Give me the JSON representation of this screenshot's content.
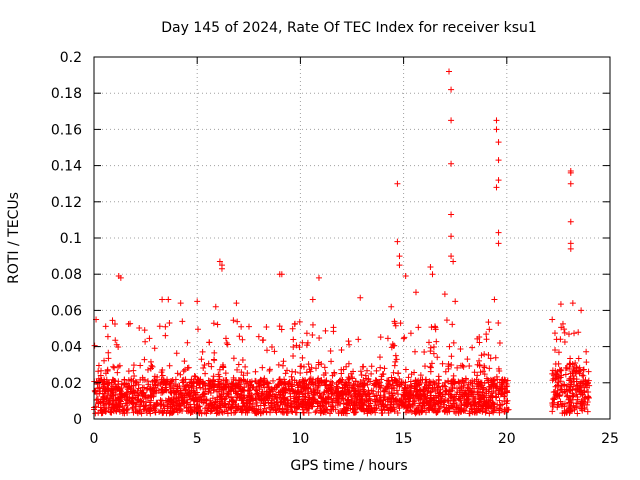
{
  "chart_data": {
    "type": "scatter",
    "title": "Day 145 of 2024, Rate Of TEC Index for receiver ksu1",
    "xlabel": "GPS time / hours",
    "ylabel": "ROTI / TECUs",
    "xlim": [
      0,
      25
    ],
    "ylim": [
      0,
      0.2
    ],
    "xticks": [
      0,
      5,
      10,
      15,
      20,
      25
    ],
    "xtick_labels": [
      "0",
      "5",
      "10",
      "15",
      "20",
      "25"
    ],
    "yticks": [
      0,
      0.02,
      0.04,
      0.06,
      0.08,
      0.1,
      0.12,
      0.14,
      0.16,
      0.18,
      0.2
    ],
    "ytick_labels": [
      "0",
      "0.02",
      "0.04",
      "0.06",
      "0.08",
      "0.1",
      "0.12",
      "0.14",
      "0.16",
      "0.18",
      "0.2"
    ],
    "grid": true,
    "marker": "+",
    "color": "#ff0000",
    "dense_coverage": [
      {
        "x_start": 0.0,
        "x_end": 20.1,
        "y_min": 0.003,
        "y_max": 0.03
      },
      {
        "x_start": 22.2,
        "x_end": 24.0,
        "y_min": 0.003,
        "y_max": 0.04
      }
    ],
    "data_gap_hours": [
      20.1,
      22.2
    ],
    "highlighted_points": [
      {
        "x": 0.1,
        "y": 0.055
      },
      {
        "x": 1.2,
        "y": 0.079
      },
      {
        "x": 1.3,
        "y": 0.078
      },
      {
        "x": 3.3,
        "y": 0.066
      },
      {
        "x": 3.6,
        "y": 0.066
      },
      {
        "x": 4.2,
        "y": 0.064
      },
      {
        "x": 5.0,
        "y": 0.065
      },
      {
        "x": 5.9,
        "y": 0.062
      },
      {
        "x": 6.1,
        "y": 0.087
      },
      {
        "x": 6.2,
        "y": 0.085
      },
      {
        "x": 6.2,
        "y": 0.083
      },
      {
        "x": 6.9,
        "y": 0.064
      },
      {
        "x": 9.0,
        "y": 0.08
      },
      {
        "x": 9.1,
        "y": 0.08
      },
      {
        "x": 10.6,
        "y": 0.066
      },
      {
        "x": 10.9,
        "y": 0.078
      },
      {
        "x": 12.9,
        "y": 0.067
      },
      {
        "x": 14.4,
        "y": 0.062
      },
      {
        "x": 14.7,
        "y": 0.13
      },
      {
        "x": 14.7,
        "y": 0.098
      },
      {
        "x": 14.8,
        "y": 0.09
      },
      {
        "x": 14.8,
        "y": 0.085
      },
      {
        "x": 15.1,
        "y": 0.079
      },
      {
        "x": 15.6,
        "y": 0.07
      },
      {
        "x": 16.3,
        "y": 0.084
      },
      {
        "x": 16.4,
        "y": 0.08
      },
      {
        "x": 17.0,
        "y": 0.069
      },
      {
        "x": 17.2,
        "y": 0.192
      },
      {
        "x": 17.3,
        "y": 0.182
      },
      {
        "x": 17.3,
        "y": 0.165
      },
      {
        "x": 17.3,
        "y": 0.141
      },
      {
        "x": 17.3,
        "y": 0.113
      },
      {
        "x": 17.3,
        "y": 0.101
      },
      {
        "x": 17.3,
        "y": 0.09
      },
      {
        "x": 17.4,
        "y": 0.087
      },
      {
        "x": 17.5,
        "y": 0.065
      },
      {
        "x": 19.5,
        "y": 0.165
      },
      {
        "x": 19.5,
        "y": 0.16
      },
      {
        "x": 19.6,
        "y": 0.153
      },
      {
        "x": 19.6,
        "y": 0.143
      },
      {
        "x": 19.6,
        "y": 0.132
      },
      {
        "x": 19.5,
        "y": 0.128
      },
      {
        "x": 19.6,
        "y": 0.103
      },
      {
        "x": 19.6,
        "y": 0.097
      },
      {
        "x": 19.4,
        "y": 0.066
      },
      {
        "x": 22.2,
        "y": 0.055
      },
      {
        "x": 23.1,
        "y": 0.137
      },
      {
        "x": 23.1,
        "y": 0.136
      },
      {
        "x": 23.1,
        "y": 0.13
      },
      {
        "x": 23.1,
        "y": 0.109
      },
      {
        "x": 23.1,
        "y": 0.097
      },
      {
        "x": 23.1,
        "y": 0.094
      },
      {
        "x": 23.2,
        "y": 0.064
      },
      {
        "x": 23.6,
        "y": 0.06
      }
    ]
  }
}
